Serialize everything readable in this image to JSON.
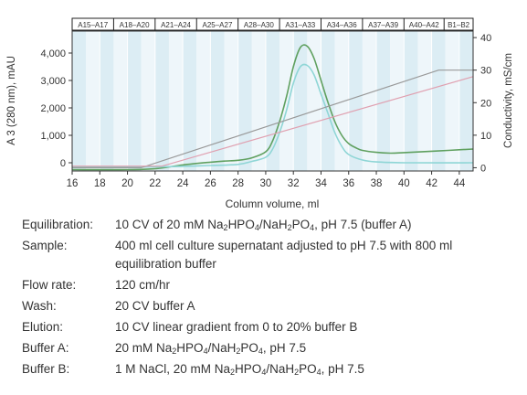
{
  "chart_data": {
    "type": "line",
    "xlabel": "Column volume, ml",
    "ylabel_left": "A 3 (280 nm), mAU",
    "ylabel_right": "Conductivity, mS/cm",
    "xlim": [
      16,
      45
    ],
    "ylim_left": [
      -300,
      4800
    ],
    "ylim_right": [
      -1,
      42
    ],
    "x_ticks": [
      16,
      18,
      20,
      22,
      24,
      26,
      28,
      30,
      32,
      34,
      36,
      38,
      40,
      42,
      44
    ],
    "y_ticks_left": [
      0,
      1000,
      2000,
      3000,
      4000
    ],
    "y_tick_labels_left": [
      "0",
      "1,000",
      "2,000",
      "3,000",
      "4,000"
    ],
    "y_ticks_right": [
      0,
      10,
      20,
      30,
      40
    ],
    "fractions": [
      "A15–A17",
      "A18–A20",
      "A21–A24",
      "A25–A27",
      "A28–A30",
      "A31–A33",
      "A34–A36",
      "A37–A39",
      "A40–A42",
      "B1–B2"
    ],
    "fraction_bounds": [
      16,
      19,
      22,
      25,
      28,
      31,
      34,
      37,
      40,
      42.9,
      45
    ],
    "series": [
      {
        "color": "#5fa05f",
        "x": [
          16,
          20,
          22,
          24,
          26,
          27,
          28,
          29,
          30,
          30.5,
          31,
          31.5,
          32,
          32.5,
          33,
          33.5,
          34,
          34.5,
          35,
          35.5,
          36,
          36.5,
          37,
          38,
          39,
          40,
          42,
          45
        ],
        "y": [
          -250,
          -250,
          -220,
          -80,
          20,
          60,
          90,
          180,
          400,
          800,
          1500,
          2400,
          3500,
          4200,
          4250,
          3800,
          3000,
          2200,
          1500,
          1000,
          700,
          550,
          450,
          380,
          350,
          370,
          420,
          500
        ]
      },
      {
        "color": "#8fd6d6",
        "x": [
          16,
          20,
          22,
          24,
          26,
          28,
          29,
          30,
          30.5,
          31,
          31.5,
          32,
          32.5,
          33,
          33.5,
          34,
          34.5,
          35,
          35.5,
          36,
          37,
          38,
          40,
          45
        ],
        "y": [
          -150,
          -150,
          -150,
          -130,
          -100,
          -60,
          50,
          200,
          500,
          1100,
          1900,
          2900,
          3500,
          3550,
          3200,
          2500,
          1800,
          1100,
          600,
          300,
          100,
          30,
          0,
          0
        ]
      },
      {
        "color": "#999999",
        "x": [
          16,
          21,
          42.5,
          45
        ],
        "y_conductivity": [
          0,
          0,
          30,
          30
        ]
      },
      {
        "color": "#e0a0b0",
        "x": [
          16,
          22.5,
          45
        ],
        "y_conductivity": [
          0.5,
          0.5,
          28
        ]
      }
    ]
  },
  "conditions": [
    {
      "label": "Equilibration:",
      "parts": [
        {
          "t": "10 CV of 20 mM Na"
        },
        {
          "s": "2"
        },
        {
          "t": "HPO"
        },
        {
          "s": "4"
        },
        {
          "t": "/NaH"
        },
        {
          "s": "2"
        },
        {
          "t": "PO"
        },
        {
          "s": "4"
        },
        {
          "t": ", pH 7.5 (buffer A)"
        }
      ]
    },
    {
      "label": "Sample:",
      "parts": [
        {
          "t": "400 ml cell culture supernatant adjusted to pH 7.5 with 800 ml equilibration buffer"
        }
      ]
    },
    {
      "label": "Flow rate:",
      "parts": [
        {
          "t": "120 cm/hr"
        }
      ]
    },
    {
      "label": "Wash:",
      "parts": [
        {
          "t": "20 CV buffer A"
        }
      ]
    },
    {
      "label": "Elution:",
      "parts": [
        {
          "t": "10 CV linear gradient from 0 to 20% buffer B"
        }
      ]
    },
    {
      "label": "Buffer A:",
      "parts": [
        {
          "t": "20 mM Na"
        },
        {
          "s": "2"
        },
        {
          "t": "HPO"
        },
        {
          "s": "4"
        },
        {
          "t": "/NaH"
        },
        {
          "s": "2"
        },
        {
          "t": "PO"
        },
        {
          "s": "4"
        },
        {
          "t": ", pH 7.5"
        }
      ]
    },
    {
      "label": "Buffer B:",
      "parts": [
        {
          "t": "1 M NaCl, 20 mM Na"
        },
        {
          "s": "2"
        },
        {
          "t": "HPO"
        },
        {
          "s": "4"
        },
        {
          "t": "/NaH"
        },
        {
          "s": "2"
        },
        {
          "t": "PO"
        },
        {
          "s": "4"
        },
        {
          "t": ", pH 7.5"
        }
      ]
    }
  ]
}
